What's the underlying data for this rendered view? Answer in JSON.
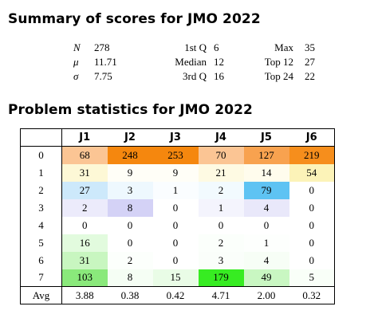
{
  "summary": {
    "title": "Summary of scores for JMO 2022",
    "rows": [
      {
        "sym": "N",
        "v1": "278",
        "l2": "1st Q",
        "v2": "6",
        "l3": "Max",
        "v3": "35"
      },
      {
        "sym": "μ",
        "v1": "11.71",
        "l2": "Median",
        "v2": "12",
        "l3": "Top 12",
        "v3": "27"
      },
      {
        "sym": "σ",
        "v1": "7.75",
        "l2": "3rd Q",
        "v2": "16",
        "l3": "Top 24",
        "v3": "22"
      }
    ]
  },
  "problems": {
    "title": "Problem statistics for JMO 2022",
    "headers": [
      "J1",
      "J2",
      "J3",
      "J4",
      "J5",
      "J6"
    ],
    "rows": [
      {
        "label": "0",
        "values": [
          "68",
          "248",
          "253",
          "70",
          "127",
          "219"
        ],
        "colors": [
          "#fbc594",
          "#f5870e",
          "#f5870e",
          "#fbc594",
          "#f8a24f",
          "#f68e1c"
        ]
      },
      {
        "label": "1",
        "values": [
          "31",
          "9",
          "9",
          "21",
          "14",
          "54"
        ],
        "colors": [
          "#fdf8d6",
          "#fffef7",
          "#fffef7",
          "#fefae3",
          "#fffced",
          "#fcf3b8"
        ]
      },
      {
        "label": "2",
        "values": [
          "27",
          "3",
          "1",
          "2",
          "79",
          "0"
        ],
        "colors": [
          "#cde9fb",
          "#eef8fe",
          "#fafdff",
          "#f2fafe",
          "#5ec3f3",
          "#ffffff"
        ]
      },
      {
        "label": "3",
        "values": [
          "2",
          "8",
          "0",
          "1",
          "4",
          "0"
        ],
        "colors": [
          "#ecebfb",
          "#d4d2f6",
          "#ffffff",
          "#f4f4fd",
          "#e9e8fa",
          "#ffffff"
        ]
      },
      {
        "label": "4",
        "values": [
          "0",
          "0",
          "0",
          "0",
          "0",
          "0"
        ],
        "colors": [
          "#ffffff",
          "#ffffff",
          "#ffffff",
          "#ffffff",
          "#ffffff",
          "#ffffff"
        ]
      },
      {
        "label": "5",
        "values": [
          "16",
          "0",
          "0",
          "2",
          "1",
          "0"
        ],
        "colors": [
          "#e2fbde",
          "#ffffff",
          "#ffffff",
          "#fbfffb",
          "#fdfffd",
          "#ffffff"
        ]
      },
      {
        "label": "6",
        "values": [
          "31",
          "2",
          "0",
          "3",
          "4",
          "0"
        ],
        "colors": [
          "#c8f6c0",
          "#fcfffc",
          "#ffffff",
          "#fafefa",
          "#f7fef6",
          "#ffffff"
        ]
      },
      {
        "label": "7",
        "values": [
          "103",
          "8",
          "15",
          "179",
          "49",
          "5"
        ],
        "colors": [
          "#8ae97b",
          "#f5fef4",
          "#e9fce6",
          "#37ec22",
          "#c9f7c2",
          "#f9fff8"
        ]
      }
    ],
    "avg": {
      "label": "Avg",
      "values": [
        "3.88",
        "0.38",
        "0.42",
        "4.71",
        "2.00",
        "0.32"
      ]
    }
  }
}
